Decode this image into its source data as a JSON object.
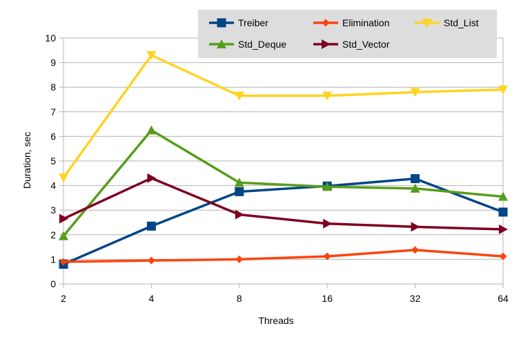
{
  "chart_data": {
    "type": "line",
    "title": "",
    "xlabel": "Threads",
    "ylabel": "Duration, sec",
    "categories": [
      "2",
      "4",
      "8",
      "16",
      "32",
      "64"
    ],
    "ylim": [
      0,
      10
    ],
    "yticks": [
      0,
      1,
      2,
      3,
      4,
      5,
      6,
      7,
      8,
      9,
      10
    ],
    "grid": true,
    "legend_position": "top-right",
    "series": [
      {
        "name": "Treiber",
        "color": "#004586",
        "marker": "square",
        "values": [
          0.8,
          2.35,
          3.75,
          3.98,
          4.28,
          2.92
        ]
      },
      {
        "name": "Elimination",
        "color": "#ff420e",
        "marker": "diamond",
        "values": [
          0.9,
          0.95,
          1.0,
          1.12,
          1.38,
          1.12
        ]
      },
      {
        "name": "Std_List",
        "color": "#ffd320",
        "marker": "triangle-down",
        "values": [
          4.32,
          9.3,
          7.65,
          7.65,
          7.8,
          7.9
        ]
      },
      {
        "name": "Std_Deque",
        "color": "#579d1c",
        "marker": "triangle-up",
        "values": [
          1.95,
          6.25,
          4.12,
          3.95,
          3.88,
          3.55
        ]
      },
      {
        "name": "Std_Vector",
        "color": "#7e0021",
        "marker": "triangle-right",
        "values": [
          2.65,
          4.3,
          2.82,
          2.45,
          2.32,
          2.22
        ]
      }
    ]
  }
}
